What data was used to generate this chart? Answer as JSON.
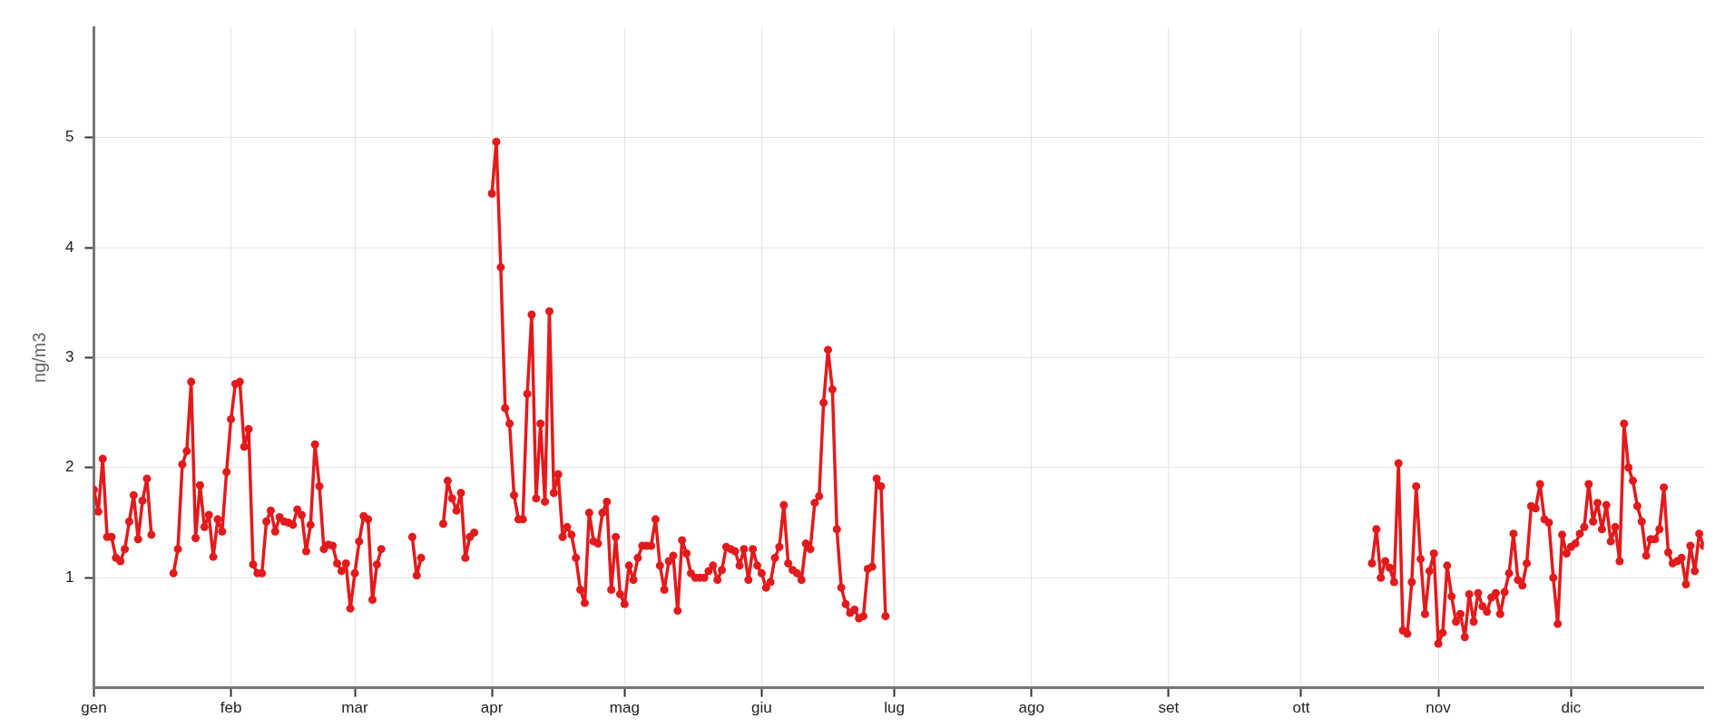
{
  "chart_data": {
    "type": "line",
    "ylabel": "ng/m3",
    "ylim": [
      0,
      6
    ],
    "yticks": [
      1,
      2,
      3,
      4,
      5
    ],
    "xlim": [
      "--01-01",
      "--12-31"
    ],
    "xticks": [
      {
        "value": "--01-01",
        "label": "gen"
      },
      {
        "value": "--02-01",
        "label": "feb"
      },
      {
        "value": "--03-01",
        "label": "mar"
      },
      {
        "value": "--04-01",
        "label": "apr"
      },
      {
        "value": "--05-01",
        "label": "mag"
      },
      {
        "value": "--06-01",
        "label": "giu"
      },
      {
        "value": "--07-01",
        "label": "lug"
      },
      {
        "value": "--08-01",
        "label": "ago"
      },
      {
        "value": "--09-01",
        "label": "set"
      },
      {
        "value": "--10-01",
        "label": "ott"
      },
      {
        "value": "--11-01",
        "label": "nov"
      },
      {
        "value": "--12-01",
        "label": "dic"
      }
    ],
    "grid": true,
    "legend": false,
    "marker": "circle",
    "line_style": "solid",
    "series": [
      {
        "color": "#e31a1c",
        "x": [
          "--01-01",
          "--01-02",
          "--01-03",
          "--01-04",
          "--01-05",
          "--01-06",
          "--01-07",
          "--01-08",
          "--01-09",
          "--01-10",
          "--01-11",
          "--01-12",
          "--01-13",
          "--01-14",
          "--01-15",
          "--01-19",
          "--01-20",
          "--01-21",
          "--01-22",
          "--01-23",
          "--01-24",
          "--01-25",
          "--01-26",
          "--01-27",
          "--01-28",
          "--01-29",
          "--01-30",
          "--01-31",
          "--02-01",
          "--02-02",
          "--02-03",
          "--02-04",
          "--02-05",
          "--02-06",
          "--02-07",
          "--02-08",
          "--02-09",
          "--02-10",
          "--02-11",
          "--02-12",
          "--02-13",
          "--02-14",
          "--02-15",
          "--02-16",
          "--02-17",
          "--02-18",
          "--02-19",
          "--02-20",
          "--02-21",
          "--02-22",
          "--02-23",
          "--02-24",
          "--02-25",
          "--02-26",
          "--02-27",
          "--02-28",
          "--03-01",
          "--03-02",
          "--03-03",
          "--03-04",
          "--03-05",
          "--03-06",
          "--03-07",
          "--03-08",
          "--03-14",
          "--03-15",
          "--03-16",
          "--03-17",
          "--03-21",
          "--03-22",
          "--03-23",
          "--03-24",
          "--03-25",
          "--03-26",
          "--03-27",
          "--03-28",
          "--03-29",
          "--04-01",
          "--04-02",
          "--04-03",
          "--04-04",
          "--04-05",
          "--04-06",
          "--04-07",
          "--04-08",
          "--04-09",
          "--04-10",
          "--04-11",
          "--04-12",
          "--04-13",
          "--04-14",
          "--04-15",
          "--04-16",
          "--04-17",
          "--04-18",
          "--04-19",
          "--04-20",
          "--04-21",
          "--04-22",
          "--04-23",
          "--04-24",
          "--04-25",
          "--04-26",
          "--04-27",
          "--04-28",
          "--04-29",
          "--04-30",
          "--05-01",
          "--05-02",
          "--05-03",
          "--05-04",
          "--05-05",
          "--05-06",
          "--05-07",
          "--05-08",
          "--05-09",
          "--05-10",
          "--05-11",
          "--05-12",
          "--05-13",
          "--05-14",
          "--05-15",
          "--05-16",
          "--05-17",
          "--05-18",
          "--05-19",
          "--05-20",
          "--05-21",
          "--05-22",
          "--05-23",
          "--05-24",
          "--05-25",
          "--05-26",
          "--05-27",
          "--05-28",
          "--05-29",
          "--05-30",
          "--05-31",
          "--06-01",
          "--06-02",
          "--06-03",
          "--06-04",
          "--06-05",
          "--06-06",
          "--06-07",
          "--06-08",
          "--06-09",
          "--06-10",
          "--06-11",
          "--06-12",
          "--06-13",
          "--06-14",
          "--06-15",
          "--06-16",
          "--06-17",
          "--06-18",
          "--06-19",
          "--06-20",
          "--06-21",
          "--06-22",
          "--06-23",
          "--06-24",
          "--06-25",
          "--06-26",
          "--06-27",
          "--06-28",
          "--06-29",
          "--06-30",
          "--10-17",
          "--10-18",
          "--10-19",
          "--10-20",
          "--10-21",
          "--10-22",
          "--10-23",
          "--10-24",
          "--10-25",
          "--10-26",
          "--10-27",
          "--10-28",
          "--10-29",
          "--10-30",
          "--10-31",
          "--11-01",
          "--11-02",
          "--11-03",
          "--11-04",
          "--11-05",
          "--11-06",
          "--11-07",
          "--11-08",
          "--11-09",
          "--11-10",
          "--11-11",
          "--11-12",
          "--11-13",
          "--11-14",
          "--11-15",
          "--11-16",
          "--11-17",
          "--11-18",
          "--11-19",
          "--11-20",
          "--11-21",
          "--11-22",
          "--11-23",
          "--11-24",
          "--11-25",
          "--11-26",
          "--11-27",
          "--11-28",
          "--11-29",
          "--11-30",
          "--12-01",
          "--12-02",
          "--12-03",
          "--12-04",
          "--12-05",
          "--12-06",
          "--12-07",
          "--12-08",
          "--12-09",
          "--12-10",
          "--12-11",
          "--12-12",
          "--12-13",
          "--12-14",
          "--12-15",
          "--12-16",
          "--12-17",
          "--12-18",
          "--12-19",
          "--12-20",
          "--12-21",
          "--12-22",
          "--12-23",
          "--12-24",
          "--12-25",
          "--12-26",
          "--12-27",
          "--12-28",
          "--12-29",
          "--12-30",
          "--12-31"
        ],
        "values": [
          1.8,
          1.6,
          2.08,
          1.37,
          1.37,
          1.18,
          1.15,
          1.26,
          1.51,
          1.75,
          1.35,
          1.7,
          1.9,
          1.39,
          null,
          1.04,
          1.26,
          2.03,
          2.15,
          2.78,
          1.36,
          1.84,
          1.46,
          1.57,
          1.19,
          1.53,
          1.42,
          1.96,
          2.44,
          2.76,
          2.78,
          2.19,
          2.35,
          1.12,
          1.04,
          1.04,
          1.51,
          1.61,
          1.42,
          1.55,
          1.51,
          1.5,
          1.48,
          1.62,
          1.57,
          1.24,
          1.48,
          2.21,
          1.83,
          1.26,
          1.3,
          1.29,
          1.13,
          1.06,
          1.13,
          0.72,
          1.04,
          1.33,
          1.56,
          1.53,
          0.8,
          1.12,
          1.26,
          null,
          1.37,
          1.02,
          1.18,
          null,
          1.49,
          1.88,
          1.72,
          1.61,
          1.77,
          1.18,
          1.37,
          1.41,
          null,
          4.49,
          4.96,
          3.82,
          2.54,
          2.4,
          1.75,
          1.53,
          1.53,
          2.67,
          3.39,
          1.72,
          2.4,
          1.69,
          3.42,
          1.77,
          1.94,
          1.37,
          1.46,
          1.39,
          1.18,
          0.89,
          0.77,
          1.59,
          1.33,
          1.31,
          1.59,
          1.69,
          0.89,
          1.37,
          0.85,
          0.76,
          1.11,
          0.98,
          1.18,
          1.29,
          1.29,
          1.29,
          1.53,
          1.11,
          0.89,
          1.15,
          1.2,
          0.7,
          1.34,
          1.22,
          1.04,
          1.0,
          1.0,
          1.0,
          1.06,
          1.11,
          0.98,
          1.07,
          1.28,
          1.26,
          1.24,
          1.11,
          1.26,
          0.98,
          1.26,
          1.11,
          1.04,
          0.91,
          0.96,
          1.18,
          1.28,
          1.66,
          1.13,
          1.07,
          1.04,
          0.98,
          1.31,
          1.26,
          1.68,
          1.74,
          2.59,
          3.07,
          2.71,
          1.44,
          0.91,
          0.76,
          0.68,
          0.71,
          0.63,
          0.65,
          1.08,
          1.1,
          1.9,
          1.83,
          0.65,
          null,
          1.13,
          1.44,
          1.0,
          1.15,
          1.09,
          0.96,
          2.04,
          0.52,
          0.49,
          0.96,
          1.83,
          1.17,
          0.67,
          1.06,
          1.22,
          0.4,
          0.5,
          1.11,
          0.83,
          0.6,
          0.67,
          0.46,
          0.85,
          0.6,
          0.86,
          0.74,
          0.69,
          0.82,
          0.86,
          0.67,
          0.87,
          1.04,
          1.4,
          0.98,
          0.93,
          1.13,
          1.65,
          1.63,
          1.85,
          1.53,
          1.5,
          1.0,
          0.58,
          1.39,
          1.22,
          1.28,
          1.31,
          1.4,
          1.46,
          1.85,
          1.51,
          1.68,
          1.44,
          1.66,
          1.33,
          1.46,
          1.15,
          2.4,
          2.0,
          1.88,
          1.65,
          1.51,
          1.2,
          1.35,
          1.35,
          1.44,
          1.82,
          1.23,
          1.13,
          1.15,
          1.18,
          0.94,
          1.29,
          1.06,
          1.4,
          1.29
        ]
      }
    ]
  }
}
